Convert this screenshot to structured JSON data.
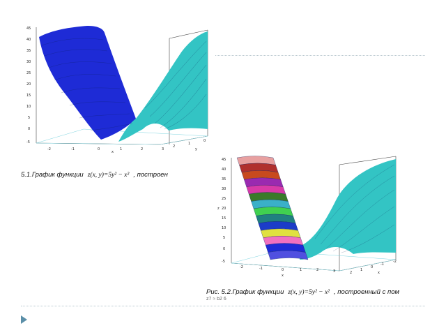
{
  "slide": {
    "figure1": {
      "z_ticks": [
        "45",
        "40",
        "35",
        "30",
        "25",
        "20",
        "15",
        "10",
        "5",
        "0",
        "-5"
      ],
      "x_ticks": [
        "-2",
        "-1",
        "0",
        "1",
        "2",
        "3"
      ],
      "y_ticks": [
        "2",
        "1",
        "0"
      ],
      "axis_x": "x",
      "axis_y": "y",
      "caption_prefix": "5.1.График функции",
      "caption_formula": "z(x, y)=5y² − x²",
      "caption_suffix": ", построен",
      "colors": {
        "left_surface": "#1e2bd6",
        "right_surface": "#33c4c4",
        "mesh": "#0b1f5a"
      }
    },
    "figure2": {
      "z_ticks": [
        "45",
        "40",
        "35",
        "30",
        "25",
        "20",
        "15",
        "10",
        "5",
        "0",
        "-5"
      ],
      "x_ticks": [
        "-2",
        "-1",
        "0",
        "1",
        "2",
        "3"
      ],
      "y_ticks": [
        "2",
        "1",
        "0",
        "-1",
        "-2"
      ],
      "axis_z": "z",
      "axis_x": "x",
      "axis_y": "x",
      "caption_prefix": "Рис. 5.2.График функции",
      "caption_formula": "z(x, y)=5y² − x²",
      "caption_suffix": ", построенный с пом",
      "caption_cut": "z7 ≈ b2 6",
      "band_colors": [
        "#e8a0a0",
        "#b0302e",
        "#c84a1e",
        "#9a2ab0",
        "#d83aa8",
        "#3a7a2a",
        "#3ab0c8",
        "#40d050",
        "#208080",
        "#1c3cc8",
        "#e0e040",
        "#f070c0",
        "#1e2bd6",
        "#5050e0"
      ],
      "right_color": "#33c4c4"
    },
    "bullet_color": "#5b8fa8"
  }
}
